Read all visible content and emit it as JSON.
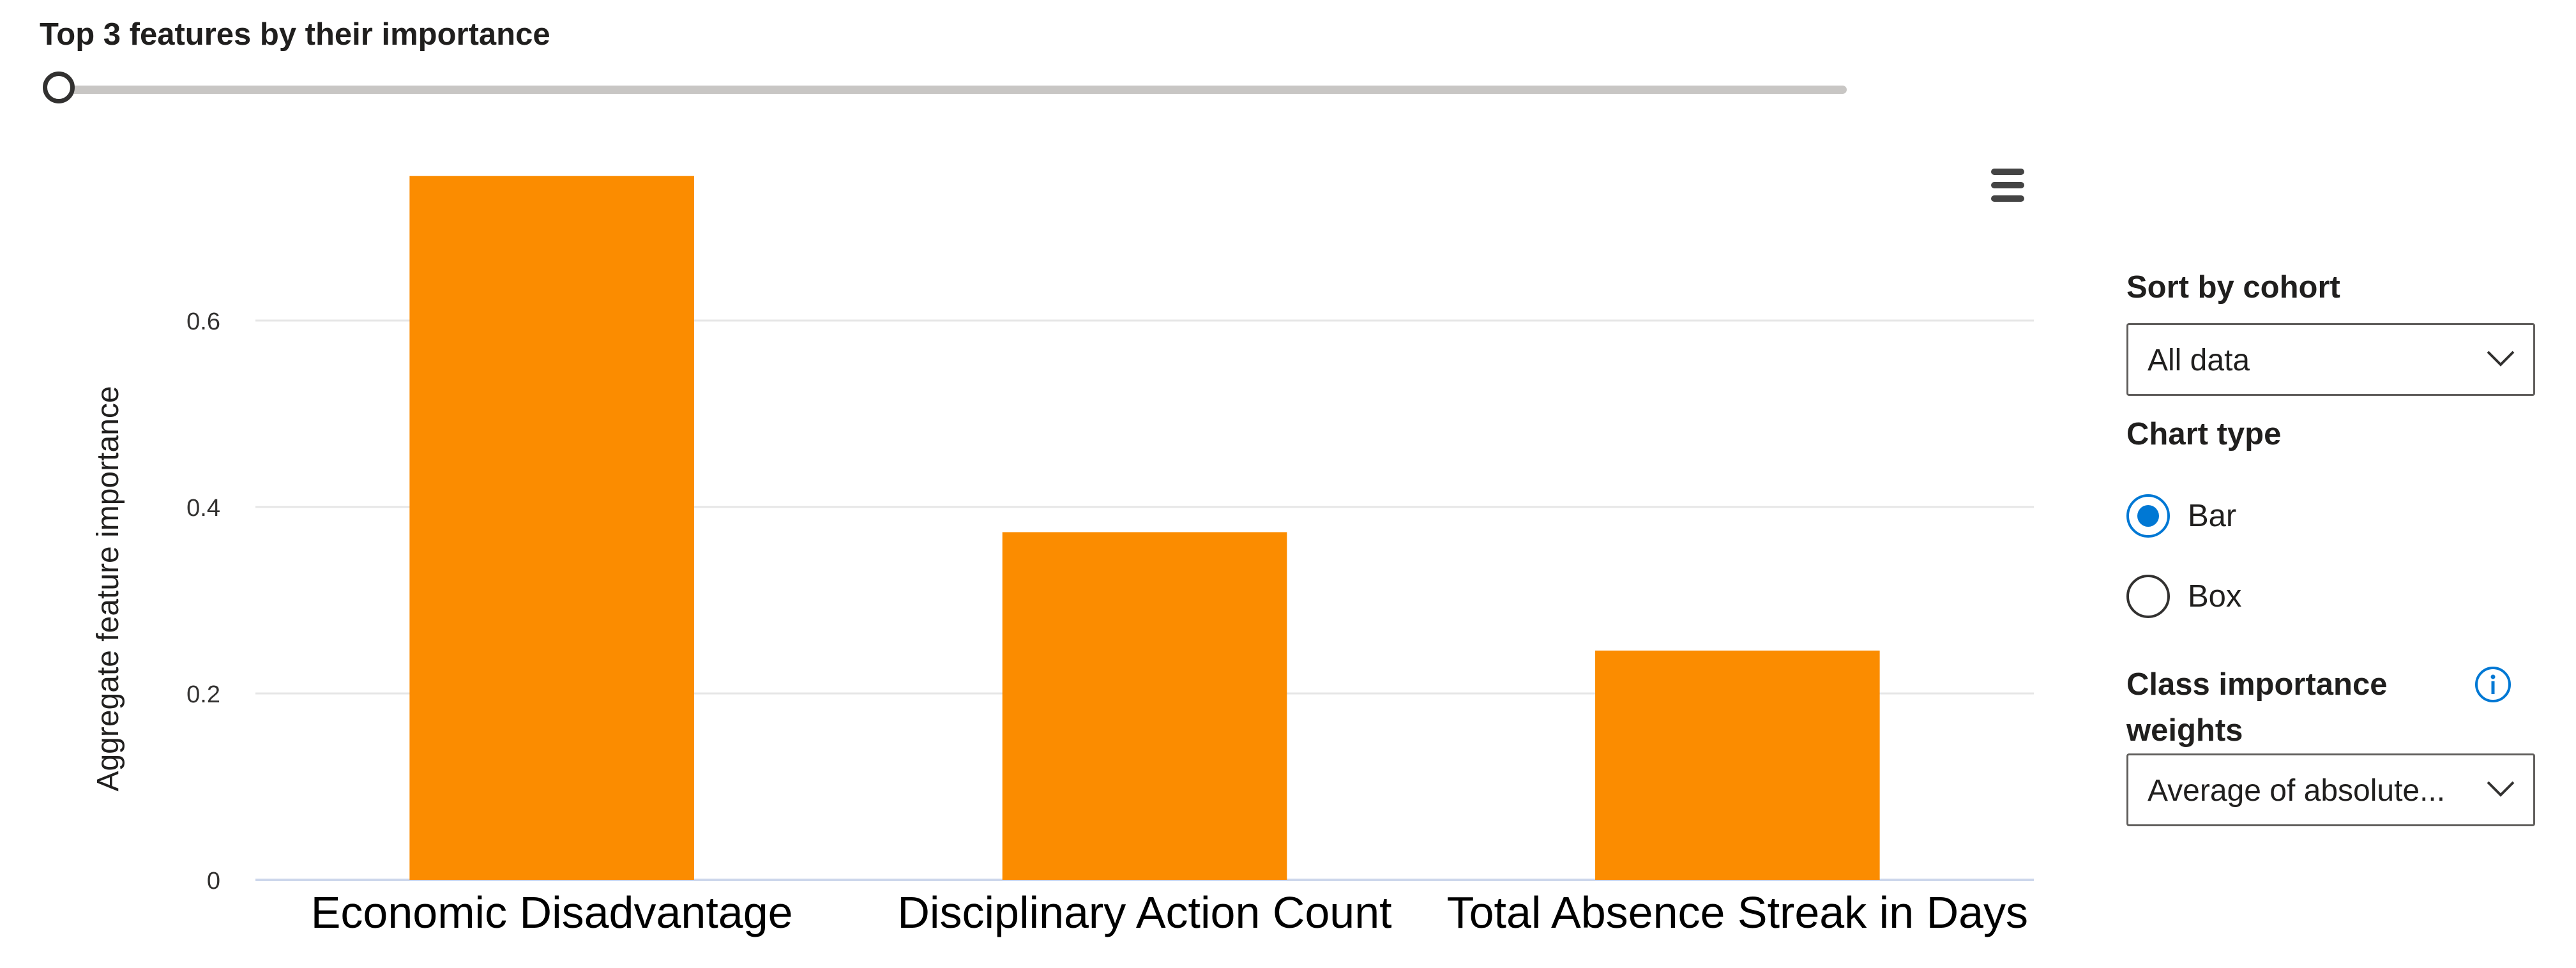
{
  "slider": {
    "title": "Top 3 features by their importance",
    "value": 3,
    "min": 3,
    "max": 50
  },
  "controls": {
    "sort_label": "Sort by cohort",
    "sort_value": "All data",
    "chart_type_label": "Chart type",
    "chart_type_options": [
      "Bar",
      "Box"
    ],
    "chart_type_selected": "Bar",
    "class_weights_label_line1": "Class importance",
    "class_weights_label_line2": "weights",
    "class_weights_value": "Average of absolute..."
  },
  "icons": {
    "menu": "hamburger-menu-icon",
    "dropdown": "chevron-down-icon",
    "info": "info-icon"
  },
  "colors": {
    "bar": "#fb8c00",
    "accent": "#0078d4",
    "gridline": "#e6e6e6"
  },
  "chart_data": {
    "type": "bar",
    "categories": [
      "Economic Disadvantage",
      "Disciplinary Action Count",
      "Total Absence Streak in Days"
    ],
    "values": [
      0.755,
      0.373,
      0.246
    ],
    "ylabel": "Aggregate feature importance",
    "xlabel": "",
    "ylim": [
      0,
      0.8
    ],
    "yticks": [
      0,
      0.2,
      0.4,
      0.6
    ],
    "ytick_labels": [
      "0",
      "0.2",
      "0.4",
      "0.6"
    ],
    "grid": true,
    "legend": "none"
  }
}
